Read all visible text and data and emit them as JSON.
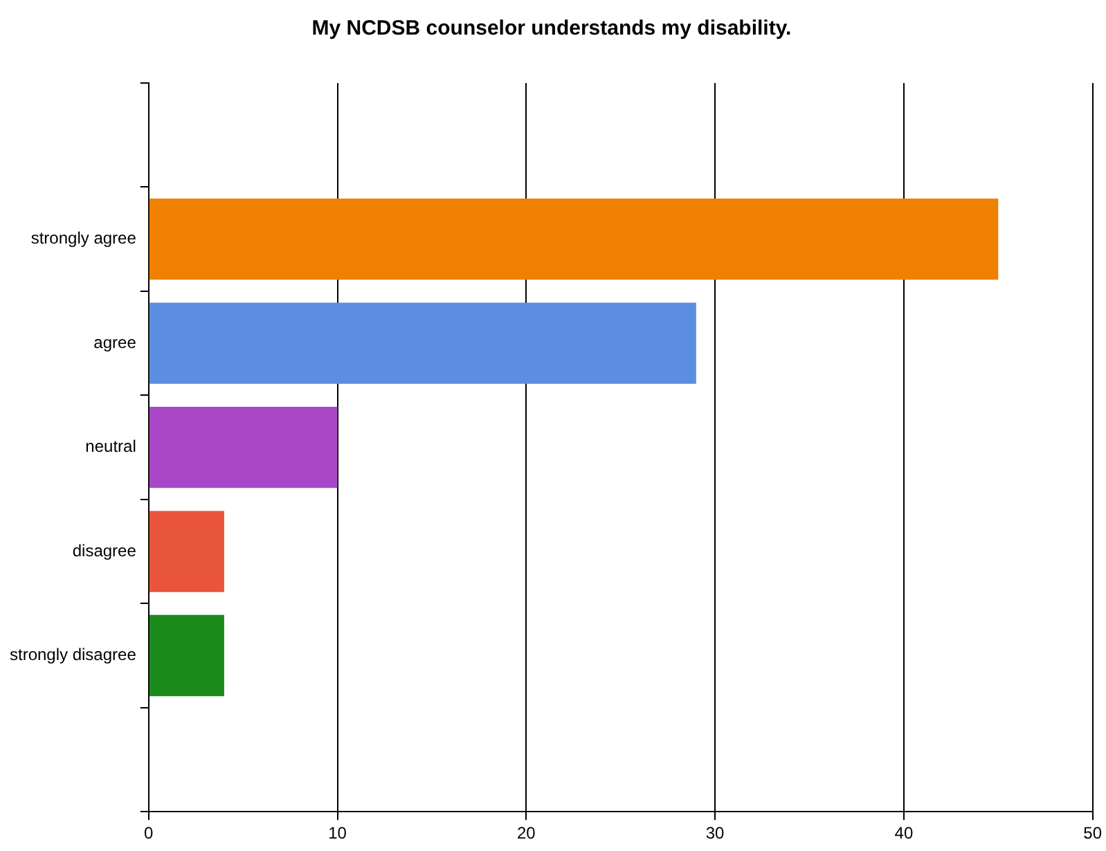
{
  "chart_data": {
    "type": "bar",
    "title": "My NCDSB counselor understands my disability.",
    "orientation": "horizontal",
    "categories": [
      "strongly agree",
      "agree",
      "neutral",
      "disagree",
      "strongly disagree"
    ],
    "values": [
      45,
      29,
      10,
      4,
      4
    ],
    "colors": [
      "#f08000",
      "#5b8de0",
      "#a947c8",
      "#e8553a",
      "#1a8a1a"
    ],
    "xlim": [
      0,
      50
    ],
    "xticks": [
      0,
      10,
      20,
      30,
      40,
      50
    ],
    "grid": "x",
    "legend": false
  }
}
